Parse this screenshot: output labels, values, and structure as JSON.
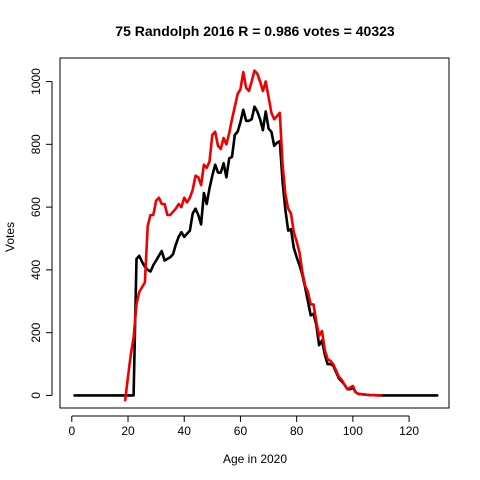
{
  "chart_data": {
    "type": "line",
    "title": "75 Randolph 2016 R = 0.986 votes = 40323",
    "xlabel": "Age in 2020",
    "ylabel": "Votes",
    "xlim": [
      -4.2,
      134.2
    ],
    "ylim": [
      -40,
      1075
    ],
    "x_ticks": [
      0,
      20,
      40,
      60,
      80,
      100,
      120
    ],
    "y_ticks": [
      0,
      200,
      400,
      600,
      800,
      1000
    ],
    "grid": false,
    "series": [
      {
        "color": "#000000",
        "points": [
          [
            1,
            0
          ],
          [
            5,
            0
          ],
          [
            10,
            0
          ],
          [
            15,
            0
          ],
          [
            20,
            0
          ],
          [
            22,
            0
          ],
          [
            23,
            435
          ],
          [
            24,
            445
          ],
          [
            25,
            425
          ],
          [
            26,
            410
          ],
          [
            27,
            400
          ],
          [
            28,
            395
          ],
          [
            29,
            415
          ],
          [
            30,
            430
          ],
          [
            31,
            445
          ],
          [
            32,
            460
          ],
          [
            33,
            430
          ],
          [
            34,
            435
          ],
          [
            35,
            440
          ],
          [
            36,
            450
          ],
          [
            37,
            480
          ],
          [
            38,
            505
          ],
          [
            39,
            520
          ],
          [
            40,
            505
          ],
          [
            41,
            515
          ],
          [
            42,
            525
          ],
          [
            43,
            580
          ],
          [
            44,
            595
          ],
          [
            45,
            575
          ],
          [
            46,
            545
          ],
          [
            47,
            645
          ],
          [
            48,
            610
          ],
          [
            49,
            660
          ],
          [
            50,
            700
          ],
          [
            51,
            735
          ],
          [
            52,
            710
          ],
          [
            53,
            710
          ],
          [
            54,
            740
          ],
          [
            55,
            695
          ],
          [
            56,
            755
          ],
          [
            57,
            760
          ],
          [
            58,
            830
          ],
          [
            59,
            840
          ],
          [
            60,
            870
          ],
          [
            61,
            910
          ],
          [
            62,
            875
          ],
          [
            63,
            875
          ],
          [
            64,
            880
          ],
          [
            65,
            920
          ],
          [
            66,
            905
          ],
          [
            67,
            880
          ],
          [
            68,
            845
          ],
          [
            69,
            905
          ],
          [
            70,
            850
          ],
          [
            71,
            840
          ],
          [
            72,
            795
          ],
          [
            73,
            805
          ],
          [
            74,
            810
          ],
          [
            75,
            680
          ],
          [
            76,
            590
          ],
          [
            77,
            525
          ],
          [
            78,
            530
          ],
          [
            79,
            470
          ],
          [
            80,
            440
          ],
          [
            81,
            415
          ],
          [
            82,
            385
          ],
          [
            83,
            345
          ],
          [
            84,
            300
          ],
          [
            85,
            255
          ],
          [
            86,
            260
          ],
          [
            87,
            225
          ],
          [
            88,
            160
          ],
          [
            89,
            175
          ],
          [
            90,
            130
          ],
          [
            91,
            100
          ],
          [
            92,
            100
          ],
          [
            93,
            95
          ],
          [
            94,
            75
          ],
          [
            95,
            55
          ],
          [
            96,
            45
          ],
          [
            97,
            35
          ],
          [
            98,
            20
          ],
          [
            99,
            20
          ],
          [
            100,
            25
          ],
          [
            101,
            10
          ],
          [
            102,
            5
          ],
          [
            104,
            3
          ],
          [
            106,
            1
          ],
          [
            110,
            0
          ],
          [
            115,
            0
          ],
          [
            120,
            0
          ],
          [
            125,
            0
          ],
          [
            130,
            0
          ]
        ]
      },
      {
        "color": "#ee0000",
        "points": [
          [
            19,
            -15
          ],
          [
            20,
            60
          ],
          [
            21,
            130
          ],
          [
            22,
            185
          ],
          [
            23,
            290
          ],
          [
            24,
            330
          ],
          [
            25,
            345
          ],
          [
            26,
            360
          ],
          [
            27,
            540
          ],
          [
            28,
            575
          ],
          [
            29,
            575
          ],
          [
            30,
            620
          ],
          [
            31,
            630
          ],
          [
            32,
            610
          ],
          [
            33,
            610
          ],
          [
            34,
            575
          ],
          [
            35,
            575
          ],
          [
            36,
            585
          ],
          [
            37,
            595
          ],
          [
            38,
            610
          ],
          [
            39,
            600
          ],
          [
            40,
            630
          ],
          [
            41,
            615
          ],
          [
            42,
            630
          ],
          [
            43,
            655
          ],
          [
            44,
            700
          ],
          [
            45,
            695
          ],
          [
            46,
            670
          ],
          [
            47,
            735
          ],
          [
            48,
            725
          ],
          [
            49,
            745
          ],
          [
            50,
            830
          ],
          [
            51,
            840
          ],
          [
            52,
            795
          ],
          [
            53,
            785
          ],
          [
            54,
            820
          ],
          [
            55,
            800
          ],
          [
            56,
            835
          ],
          [
            57,
            880
          ],
          [
            58,
            920
          ],
          [
            59,
            960
          ],
          [
            60,
            975
          ],
          [
            61,
            1030
          ],
          [
            62,
            980
          ],
          [
            63,
            970
          ],
          [
            64,
            1000
          ],
          [
            65,
            1035
          ],
          [
            66,
            1025
          ],
          [
            67,
            1000
          ],
          [
            68,
            970
          ],
          [
            69,
            1000
          ],
          [
            70,
            950
          ],
          [
            71,
            900
          ],
          [
            72,
            880
          ],
          [
            73,
            890
          ],
          [
            74,
            900
          ],
          [
            75,
            735
          ],
          [
            76,
            640
          ],
          [
            77,
            595
          ],
          [
            78,
            580
          ],
          [
            79,
            520
          ],
          [
            80,
            490
          ],
          [
            81,
            455
          ],
          [
            82,
            395
          ],
          [
            83,
            350
          ],
          [
            84,
            330
          ],
          [
            85,
            290
          ],
          [
            86,
            290
          ],
          [
            87,
            235
          ],
          [
            88,
            190
          ],
          [
            89,
            205
          ],
          [
            90,
            145
          ],
          [
            91,
            115
          ],
          [
            92,
            110
          ],
          [
            93,
            100
          ],
          [
            94,
            80
          ],
          [
            95,
            60
          ],
          [
            96,
            50
          ],
          [
            97,
            35
          ],
          [
            98,
            20
          ],
          [
            99,
            25
          ],
          [
            100,
            30
          ],
          [
            101,
            10
          ],
          [
            102,
            5
          ],
          [
            104,
            3
          ],
          [
            106,
            1
          ],
          [
            110,
            0
          ]
        ]
      }
    ]
  }
}
